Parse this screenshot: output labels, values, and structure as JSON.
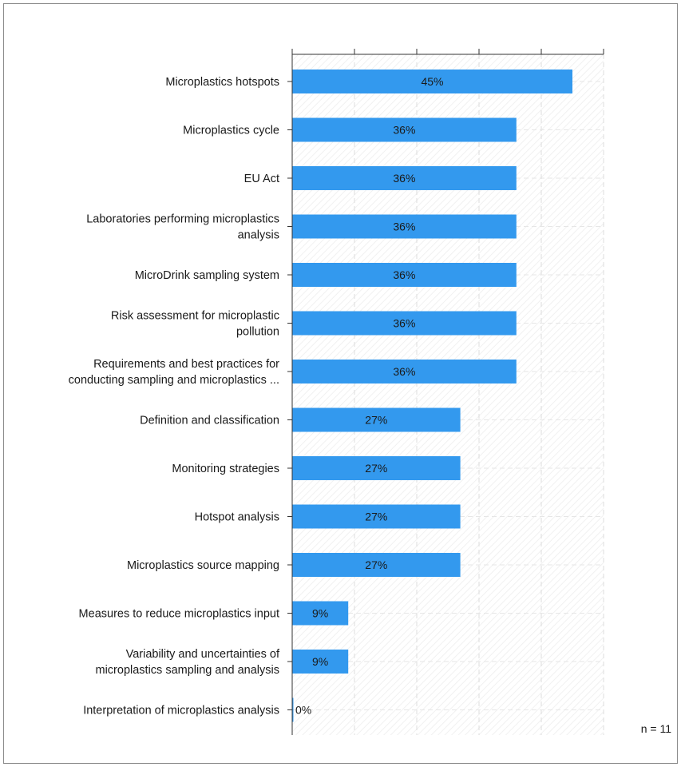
{
  "chart_data": {
    "type": "bar",
    "orientation": "horizontal",
    "categories": [
      [
        "Microplastics hotspots"
      ],
      [
        "Microplastics cycle"
      ],
      [
        "EU Act"
      ],
      [
        "Laboratories performing microplastics",
        "analysis"
      ],
      [
        "MicroDrink sampling system"
      ],
      [
        "Risk assessment for microplastic",
        "pollution"
      ],
      [
        "Requirements and best practices for",
        "conducting sampling and microplastics ..."
      ],
      [
        "Definition and classification"
      ],
      [
        "Monitoring strategies"
      ],
      [
        "Hotspot analysis"
      ],
      [
        "Microplastics source mapping"
      ],
      [
        "Measures to reduce microplastics input"
      ],
      [
        "Variability and uncertainties of",
        "microplastics sampling and analysis"
      ],
      [
        "Interpretation of microplastics analysis"
      ]
    ],
    "values": [
      45,
      36,
      36,
      36,
      36,
      36,
      36,
      27,
      27,
      27,
      27,
      9,
      9,
      0
    ],
    "value_labels": [
      "45%",
      "36%",
      "36%",
      "36%",
      "36%",
      "36%",
      "36%",
      "27%",
      "27%",
      "27%",
      "27%",
      "9%",
      "9%",
      "0%"
    ],
    "xlim": [
      0,
      50
    ],
    "bar_color": "#3399ee",
    "grid": true,
    "note": "n = 11"
  }
}
